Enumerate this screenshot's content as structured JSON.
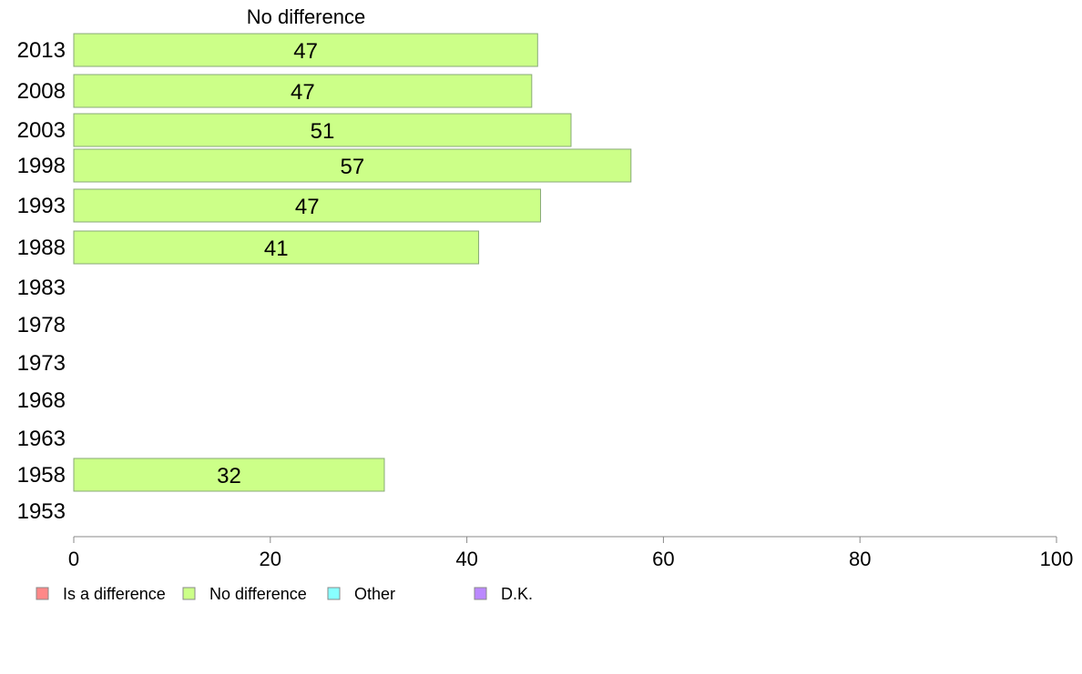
{
  "chart_data": {
    "type": "bar",
    "orientation": "horizontal",
    "title": "No difference",
    "categories": [
      "2013",
      "2008",
      "2003",
      "1998",
      "1993",
      "1988",
      "1983",
      "1978",
      "1973",
      "1968",
      "1963",
      "1958",
      "1953"
    ],
    "series": [
      {
        "name": "No difference",
        "color": "#ccff88",
        "values": [
          47,
          47,
          51,
          57,
          47,
          41,
          null,
          null,
          null,
          null,
          null,
          32,
          null
        ],
        "actual_lengths": [
          47.2,
          46.6,
          50.6,
          56.7,
          47.5,
          41.2,
          null,
          null,
          null,
          null,
          null,
          31.6,
          null
        ]
      }
    ],
    "xlim": [
      0,
      100
    ],
    "xticks": [
      "0",
      "20",
      "40",
      "60",
      "80",
      "100"
    ],
    "grid": false,
    "legend": {
      "placement": "bottom",
      "items": [
        {
          "label": "Is a difference",
          "color": "#ff8888"
        },
        {
          "label": "No difference",
          "color": "#ccff88"
        },
        {
          "label": "Other",
          "color": "#88ffff"
        },
        {
          "label": "D.K.",
          "color": "#bb88ff"
        }
      ]
    }
  }
}
